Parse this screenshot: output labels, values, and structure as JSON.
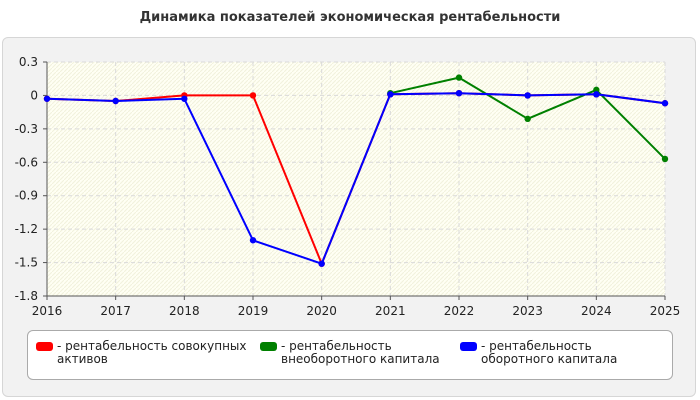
{
  "chart_data": {
    "type": "line",
    "title": "Динамика показателей экономическая рентабельности",
    "x": [
      "2016",
      "2017",
      "2018",
      "2019",
      "2020",
      "2021",
      "2022",
      "2023",
      "2024",
      "2025"
    ],
    "yticks": [
      "0.3",
      "0",
      "-0.3",
      "-0.6",
      "-0.9",
      "-1.2",
      "-1.5",
      "-1.8"
    ],
    "ylim": [
      -1.8,
      0.3
    ],
    "grid": true,
    "legend_position": "bottom",
    "series": [
      {
        "name": "- рентабельность совокупных активов",
        "color": "#ff0000",
        "values": [
          -0.03,
          -0.05,
          0.0,
          0.0,
          -1.51,
          0.01,
          0.02,
          0.0,
          0.01,
          -0.07
        ]
      },
      {
        "name": "- рентабельность внеоборотного капитала",
        "color": "#008000",
        "values": [
          null,
          null,
          null,
          null,
          null,
          0.02,
          0.16,
          -0.21,
          0.05,
          -0.57
        ]
      },
      {
        "name": "- рентабельность оборотного капитала",
        "color": "#0000ff",
        "values": [
          -0.03,
          -0.05,
          -0.03,
          -1.3,
          -1.51,
          0.01,
          0.02,
          0.0,
          0.01,
          -0.07
        ]
      }
    ]
  }
}
